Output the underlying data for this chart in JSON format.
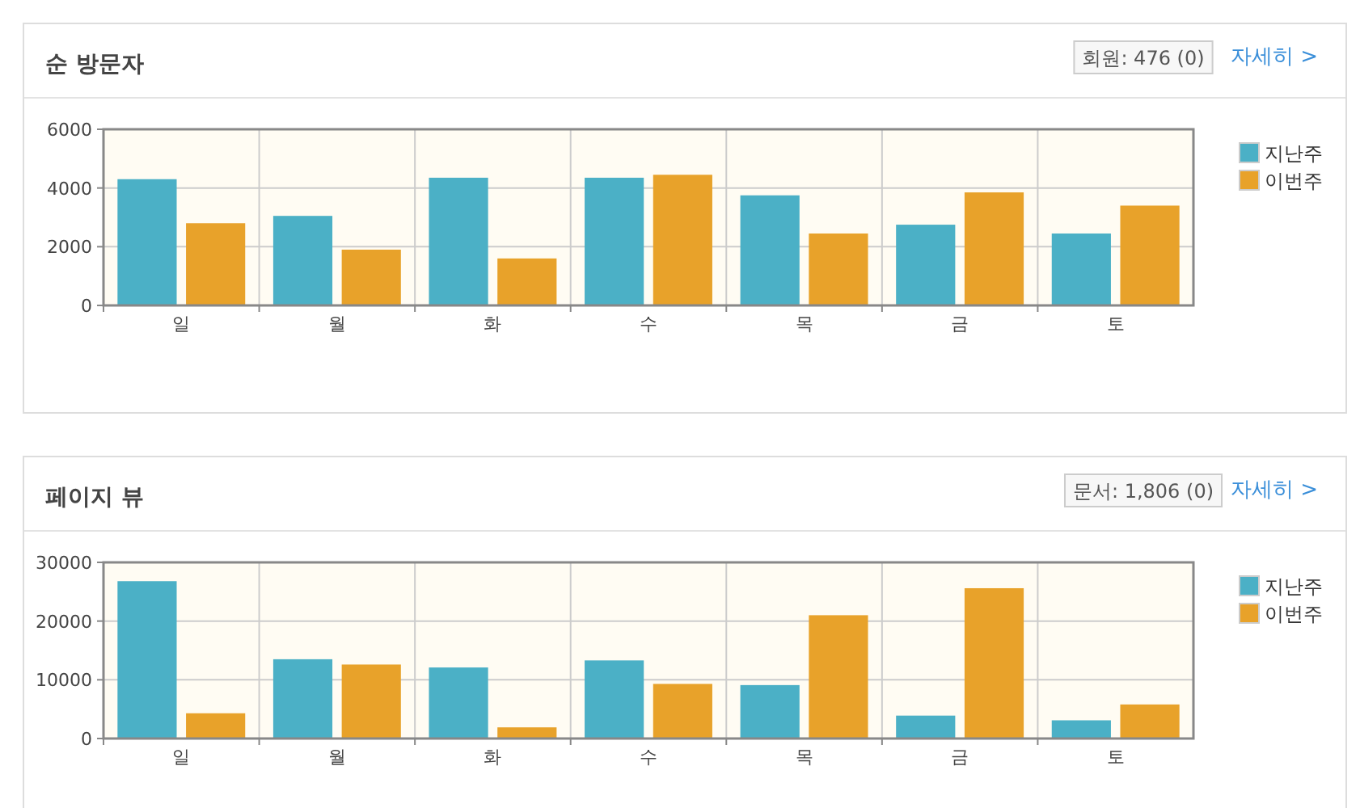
{
  "chart_data": [
    {
      "type": "bar",
      "title": "순 방문자",
      "categories": [
        "일",
        "월",
        "화",
        "수",
        "목",
        "금",
        "토"
      ],
      "series": [
        {
          "name": "지난주",
          "color": "#4bb0c6",
          "values": [
            4300,
            3050,
            4350,
            4350,
            3750,
            2750,
            2450
          ]
        },
        {
          "name": "이번주",
          "color": "#e8a22a",
          "values": [
            2800,
            1900,
            1600,
            4450,
            2450,
            3850,
            3400
          ]
        }
      ],
      "ylim": [
        0,
        6000
      ],
      "yticks": [
        0,
        2000,
        4000,
        6000
      ],
      "grid": true,
      "legend": "top right",
      "annotations": [
        "회원: 476 (0)",
        "자세히 >"
      ]
    },
    {
      "type": "bar",
      "title": "페이지 뷰",
      "categories": [
        "일",
        "월",
        "화",
        "수",
        "목",
        "금",
        "토"
      ],
      "series": [
        {
          "name": "지난주",
          "color": "#4bb0c6",
          "values": [
            26800,
            13500,
            12100,
            13300,
            9100,
            3900,
            3100
          ]
        },
        {
          "name": "이번주",
          "color": "#e8a22a",
          "values": [
            4300,
            12600,
            1900,
            9300,
            21000,
            25600,
            5800
          ]
        }
      ],
      "ylim": [
        0,
        30000
      ],
      "yticks": [
        0,
        10000,
        20000,
        30000
      ],
      "grid": true,
      "legend": "top right",
      "annotations": [
        "문서: 1,806 (0)",
        "자세히 >"
      ]
    }
  ]
}
